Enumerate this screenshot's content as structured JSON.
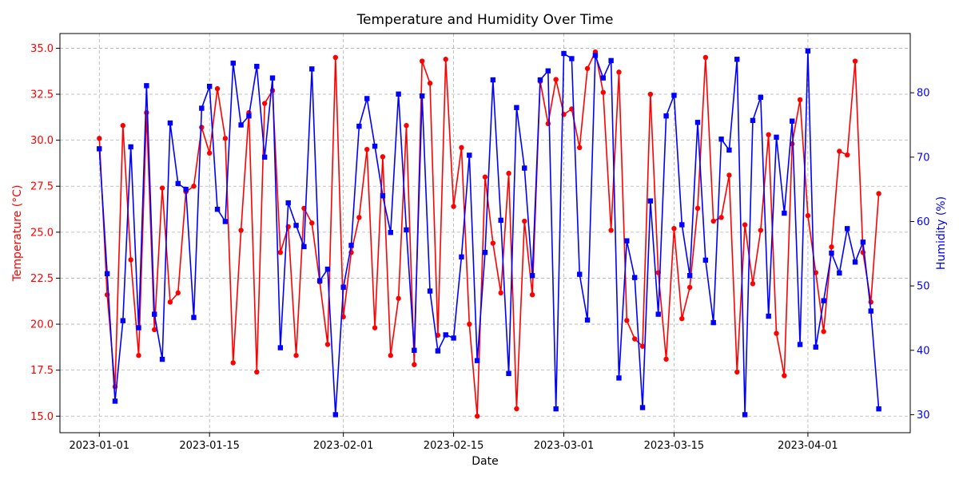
{
  "chart_data": {
    "type": "line",
    "title": "Temperature and Humidity Over Time",
    "xlabel": "Date",
    "x_start": "2023-01-01",
    "x": [
      "2023-01-01",
      "2023-01-02",
      "2023-01-03",
      "2023-01-04",
      "2023-01-05",
      "2023-01-06",
      "2023-01-07",
      "2023-01-08",
      "2023-01-09",
      "2023-01-10",
      "2023-01-11",
      "2023-01-12",
      "2023-01-13",
      "2023-01-14",
      "2023-01-15",
      "2023-01-16",
      "2023-01-17",
      "2023-01-18",
      "2023-01-19",
      "2023-01-20",
      "2023-01-21",
      "2023-01-22",
      "2023-01-23",
      "2023-01-24",
      "2023-01-25",
      "2023-01-26",
      "2023-01-27",
      "2023-01-28",
      "2023-01-29",
      "2023-01-30",
      "2023-01-31",
      "2023-02-01",
      "2023-02-02",
      "2023-02-03",
      "2023-02-04",
      "2023-02-05",
      "2023-02-06",
      "2023-02-07",
      "2023-02-08",
      "2023-02-09",
      "2023-02-10",
      "2023-02-11",
      "2023-02-12",
      "2023-02-13",
      "2023-02-14",
      "2023-02-15",
      "2023-02-16",
      "2023-02-17",
      "2023-02-18",
      "2023-02-19",
      "2023-02-20",
      "2023-02-21",
      "2023-02-22",
      "2023-02-23",
      "2023-02-24",
      "2023-02-25",
      "2023-02-26",
      "2023-02-27",
      "2023-02-28",
      "2023-03-01",
      "2023-03-02",
      "2023-03-03",
      "2023-03-04",
      "2023-03-05",
      "2023-03-06",
      "2023-03-07",
      "2023-03-08",
      "2023-03-09",
      "2023-03-10",
      "2023-03-11",
      "2023-03-12",
      "2023-03-13",
      "2023-03-14",
      "2023-03-15",
      "2023-03-16",
      "2023-03-17",
      "2023-03-18",
      "2023-03-19",
      "2023-03-20",
      "2023-03-21",
      "2023-03-22",
      "2023-03-23",
      "2023-03-24",
      "2023-03-25",
      "2023-03-26",
      "2023-03-27",
      "2023-03-28",
      "2023-03-29",
      "2023-03-30",
      "2023-03-31",
      "2023-04-01",
      "2023-04-02",
      "2023-04-03",
      "2023-04-04",
      "2023-04-05",
      "2023-04-06",
      "2023-04-07",
      "2023-04-08",
      "2023-04-09",
      "2023-04-10"
    ],
    "xticks": [
      "2023-01-01",
      "2023-01-15",
      "2023-02-01",
      "2023-02-15",
      "2023-03-01",
      "2023-03-15",
      "2023-04-01"
    ],
    "xlim": [
      "2022-12-27",
      "2023-04-14"
    ],
    "grid": true,
    "series": [
      {
        "ylabel": "Temperature (°C)",
        "axis": "left",
        "color": "#ff0000",
        "marker": "circle",
        "ylim": [
          14.1,
          35.8
        ],
        "yticks": [
          "15.0",
          "17.5",
          "20.0",
          "22.5",
          "25.0",
          "27.5",
          "30.0",
          "32.5",
          "35.0"
        ],
        "values": [
          30.1,
          21.6,
          16.6,
          30.8,
          23.5,
          18.3,
          31.5,
          19.7,
          27.4,
          21.2,
          21.7,
          27.2,
          27.5,
          30.7,
          29.3,
          32.8,
          30.1,
          17.9,
          25.1,
          31.5,
          17.4,
          32.0,
          32.7,
          23.9,
          25.3,
          18.3,
          26.3,
          25.5,
          22.3,
          18.9,
          34.5,
          20.4,
          23.9,
          25.8,
          29.5,
          19.8,
          29.1,
          18.3,
          21.4,
          30.8,
          17.8,
          34.3,
          33.1,
          19.4,
          34.4,
          26.4,
          29.6,
          20.0,
          15.0,
          28.0,
          24.4,
          21.7,
          28.2,
          15.4,
          25.6,
          21.6,
          33.2,
          30.9,
          33.3,
          31.4,
          31.7,
          29.6,
          33.9,
          34.8,
          32.6,
          25.1,
          33.7,
          20.2,
          19.2,
          18.8,
          32.5,
          22.8,
          18.1,
          25.2,
          20.3,
          22.0,
          26.3,
          34.5,
          25.6,
          25.8,
          28.1,
          17.4,
          25.4,
          22.2,
          25.1,
          30.3,
          19.5,
          17.2,
          29.8,
          32.2,
          25.9,
          22.8,
          19.6,
          24.2,
          29.4,
          29.2,
          34.3,
          23.9,
          21.2,
          27.1
        ]
      },
      {
        "ylabel": "Humidity (%)",
        "axis": "right",
        "color": "#0000ff",
        "marker": "square",
        "ylim": [
          27.2,
          89.2
        ],
        "yticks": [
          "30",
          "40",
          "50",
          "60",
          "70",
          "80"
        ],
        "values": [
          71.3,
          51.9,
          32.1,
          44.6,
          71.6,
          43.5,
          81.1,
          45.6,
          38.6,
          75.3,
          65.9,
          65.0,
          45.1,
          77.6,
          81.0,
          61.9,
          60.0,
          84.6,
          75.0,
          76.4,
          84.1,
          70.0,
          82.3,
          40.4,
          62.9,
          59.4,
          56.1,
          83.7,
          50.8,
          52.6,
          30.0,
          49.8,
          56.3,
          74.8,
          79.1,
          71.7,
          64.0,
          58.3,
          79.8,
          58.7,
          40.0,
          79.5,
          49.2,
          39.9,
          42.4,
          41.9,
          54.5,
          70.3,
          38.4,
          55.2,
          82.0,
          60.2,
          36.4,
          77.7,
          68.3,
          51.6,
          82.0,
          83.4,
          30.9,
          86.1,
          85.3,
          51.8,
          44.7,
          85.8,
          82.3,
          85.0,
          35.7,
          57.0,
          51.3,
          31.1,
          63.2,
          45.6,
          76.4,
          79.6,
          59.5,
          51.6,
          75.4,
          54.0,
          44.3,
          72.8,
          71.1,
          85.2,
          30.0,
          75.7,
          79.3,
          45.3,
          73.1,
          61.3,
          75.6,
          40.9,
          86.5,
          40.5,
          47.7,
          55.1,
          52.0,
          58.9,
          53.7,
          56.8,
          46.1,
          30.9
        ]
      }
    ]
  }
}
